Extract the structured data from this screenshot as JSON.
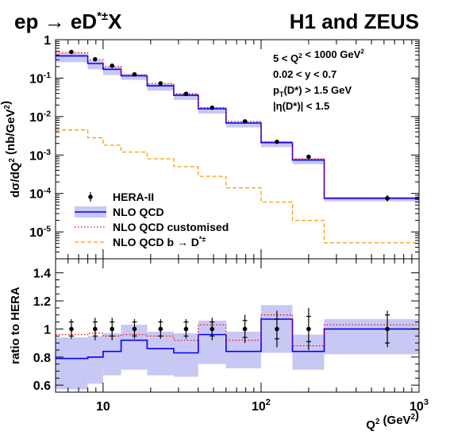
{
  "header": {
    "process_main": "ep",
    "process_arrow": "→",
    "process_product": "eD",
    "process_sup": "*±",
    "process_tail": "X",
    "collab": "H1 and ZEUS"
  },
  "chart_data": [
    {
      "type": "line",
      "panel": "top",
      "ylabel_parts": [
        "dσ/dQ",
        "2",
        " (nb/GeV",
        "2",
        ")"
      ],
      "yscale": "log",
      "xscale": "log",
      "xlim": [
        5,
        1000
      ],
      "ylim": [
        2e-06,
        1
      ],
      "grid": false,
      "ytick_labels": [
        {
          "v": 1,
          "base": "1",
          "exp": ""
        },
        {
          "v": 0.1,
          "base": "10",
          "exp": "-1"
        },
        {
          "v": 0.01,
          "base": "10",
          "exp": "-2"
        },
        {
          "v": 0.001,
          "base": "10",
          "exp": "-3"
        },
        {
          "v": 0.0001,
          "base": "10",
          "exp": "-4"
        },
        {
          "v": 1e-05,
          "base": "10",
          "exp": "-5"
        }
      ],
      "bin_edges": [
        5,
        8,
        10,
        13,
        19,
        28,
        40,
        60,
        100,
        158,
        251,
        1000
      ],
      "annotations": [
        {
          "parts": [
            "5 < Q",
            "2",
            " < 1000 GeV",
            "2"
          ]
        },
        {
          "parts": [
            "0.02 < y < 0.7"
          ]
        },
        {
          "parts": [
            "p",
            "T",
            "(D*) > 1.5 GeV"
          ]
        },
        {
          "parts": [
            "|η(D*)| < 1.5"
          ]
        }
      ],
      "legend_position": "bottom-left",
      "series": [
        {
          "name": "HERA-II",
          "kind": "points",
          "color": "#000000",
          "x": [
            6.3,
            8.9,
            11.4,
            15.8,
            23.1,
            33.5,
            49.0,
            79.0,
            126.0,
            200.0,
            630.0
          ],
          "y": [
            0.48,
            0.31,
            0.21,
            0.125,
            0.073,
            0.039,
            0.017,
            0.0075,
            0.0022,
            0.0009,
            7.5e-05
          ]
        },
        {
          "name": "NLO QCD",
          "kind": "step",
          "color": "#0000ff",
          "band_color": "#c8c8f5",
          "y": [
            0.38,
            0.24,
            0.17,
            0.115,
            0.063,
            0.036,
            0.016,
            0.0068,
            0.0021,
            0.00074,
            7.5e-05
          ],
          "band_lo": [
            0.26,
            0.17,
            0.12,
            0.09,
            0.047,
            0.027,
            0.012,
            0.0052,
            0.0016,
            0.00058,
            6.2e-05
          ],
          "band_hi": [
            0.45,
            0.29,
            0.2,
            0.13,
            0.071,
            0.04,
            0.0175,
            0.0074,
            0.0023,
            0.00082,
            8.1e-05
          ]
        },
        {
          "name": "NLO QCD customised",
          "kind": "step",
          "color": "#ff0000",
          "dash": "dot",
          "y": [
            0.46,
            0.3,
            0.2,
            0.12,
            0.072,
            0.039,
            0.0172,
            0.0074,
            0.0022,
            0.00079,
            7.7e-05
          ]
        },
        {
          "name": "NLO QCD b",
          "name_arrow": "→",
          "name_tail": "D",
          "name_sup": "*±",
          "kind": "step",
          "color": "#ff9900",
          "dash": "dash",
          "y": [
            0.0045,
            0.0028,
            0.0018,
            0.0012,
            0.0008,
            0.0005,
            0.00028,
            0.00014,
            6e-05,
            2e-05,
            5.2e-06
          ]
        }
      ]
    },
    {
      "type": "line",
      "panel": "bottom",
      "ylabel": "ratio to HERA",
      "xlabel_parts": [
        "Q",
        "2",
        " (GeV",
        "2",
        ")"
      ],
      "xscale": "log",
      "xlim": [
        5,
        1000
      ],
      "ylim": [
        0.55,
        1.5
      ],
      "grid": false,
      "ytick_labels": [
        "0.6",
        "0.8",
        "1",
        "1.2",
        "1.4"
      ],
      "ytick_values": [
        0.6,
        0.8,
        1.0,
        1.2,
        1.4
      ],
      "xtick_labels": [
        {
          "v": 10,
          "base": "10",
          "exp": ""
        },
        {
          "v": 100,
          "base": "10",
          "exp": "2"
        },
        {
          "v": 1000,
          "base": "10",
          "exp": "3"
        }
      ],
      "bin_edges": [
        5,
        8,
        10,
        13,
        19,
        28,
        40,
        60,
        100,
        158,
        251,
        1000
      ],
      "series": [
        {
          "name": "HERA-II",
          "kind": "points",
          "x": [
            6.3,
            8.9,
            11.4,
            15.8,
            23.1,
            33.5,
            49.0,
            79.0,
            126.0,
            200.0,
            630.0
          ],
          "y": [
            1,
            1,
            1,
            1,
            1,
            1,
            1,
            1,
            1,
            1,
            1
          ],
          "err_stat": [
            0.05,
            0.05,
            0.05,
            0.05,
            0.05,
            0.05,
            0.05,
            0.06,
            0.07,
            0.09,
            0.1
          ],
          "err_tot": [
            0.07,
            0.08,
            0.08,
            0.07,
            0.07,
            0.07,
            0.08,
            0.1,
            0.13,
            0.15,
            0.13
          ]
        },
        {
          "name": "NLO QCD",
          "kind": "step",
          "y": [
            0.79,
            0.8,
            0.84,
            0.92,
            0.86,
            0.83,
            0.96,
            0.84,
            1.07,
            0.84,
            1.0
          ],
          "band_lo": [
            0.57,
            0.61,
            0.67,
            0.71,
            0.67,
            0.66,
            0.75,
            0.72,
            0.83,
            0.71,
            0.82
          ],
          "band_hi": [
            0.94,
            0.95,
            0.97,
            1.03,
            0.98,
            0.97,
            1.06,
            0.98,
            1.17,
            0.96,
            1.07
          ]
        },
        {
          "name": "NLO QCD customised",
          "kind": "step",
          "y": [
            0.96,
            0.97,
            0.95,
            0.96,
            0.95,
            0.92,
            1.03,
            0.92,
            1.1,
            0.88,
            1.03
          ]
        }
      ]
    }
  ]
}
